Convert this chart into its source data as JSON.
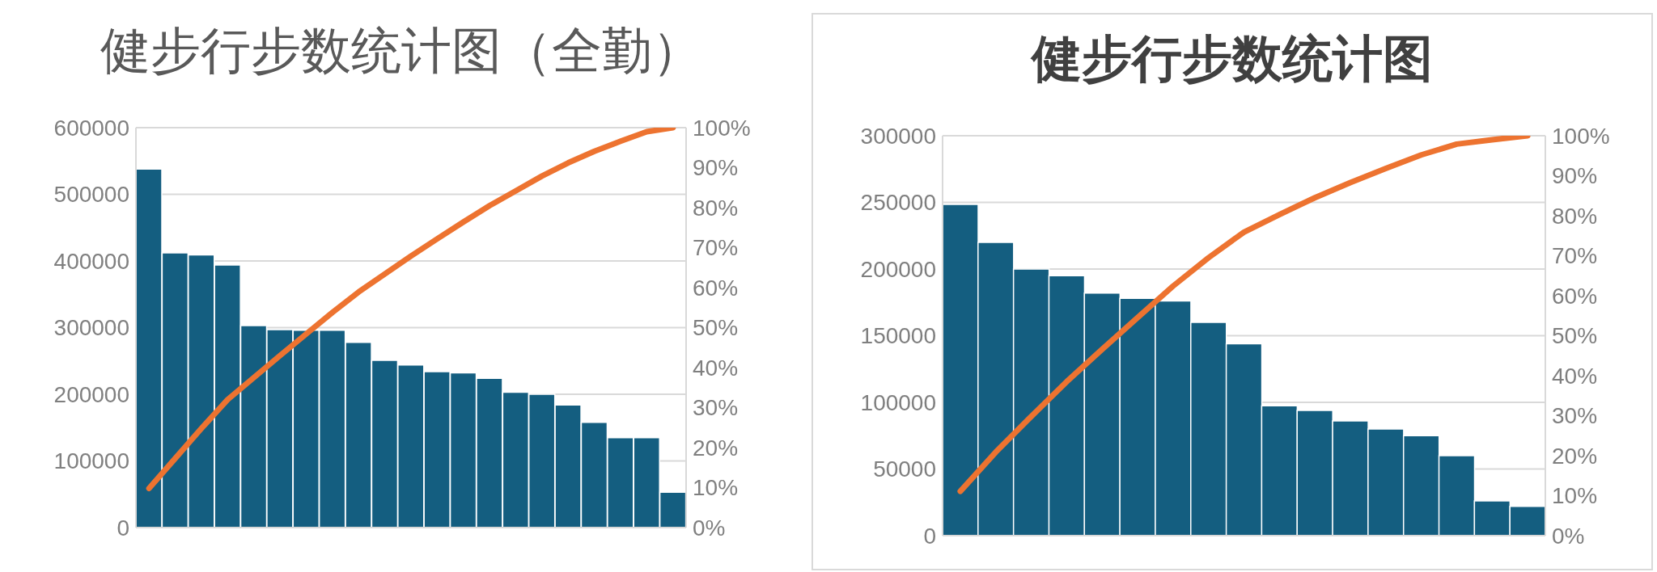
{
  "chart_data": [
    {
      "type": "bar",
      "title": "健步行步数统计图（全勤）",
      "categories": [
        null,
        null,
        null,
        null,
        null,
        null,
        null,
        null,
        null,
        null,
        null,
        null,
        null,
        null,
        null,
        null,
        null,
        null,
        null,
        null,
        null
      ],
      "series": [
        {
          "color": "#145e80",
          "values": [
            538000,
            412000,
            409000,
            394000,
            303000,
            297000,
            296000,
            296000,
            278000,
            251000,
            244000,
            234000,
            232000,
            224000,
            203000,
            200000,
            184000,
            158000,
            135000,
            135000,
            53000
          ]
        },
        {
          "type": "line",
          "axis": "y2",
          "color": "#ed7330",
          "values": [
            9.8,
            17.3,
            24.8,
            32.0,
            37.5,
            43.0,
            48.4,
            53.8,
            58.9,
            63.4,
            67.9,
            72.2,
            76.4,
            80.5,
            84.2,
            87.9,
            91.2,
            94.1,
            96.6,
            99.0,
            100
          ]
        }
      ],
      "ylim": [
        0,
        600000
      ],
      "yticks": [
        0,
        100000,
        200000,
        300000,
        400000,
        500000,
        600000
      ],
      "y2lim": [
        0,
        100
      ],
      "y2ticks": [
        {
          "value": 0,
          "label": "0%"
        },
        {
          "value": 10,
          "label": "10%"
        },
        {
          "value": 20,
          "label": "20%"
        },
        {
          "value": 30,
          "label": "30%"
        },
        {
          "value": 40,
          "label": "40%"
        },
        {
          "value": 50,
          "label": "50%"
        },
        {
          "value": 60,
          "label": "60%"
        },
        {
          "value": 70,
          "label": "70%"
        },
        {
          "value": 80,
          "label": "80%"
        },
        {
          "value": 90,
          "label": "90%"
        },
        {
          "value": 100,
          "label": "100%"
        }
      ],
      "grid": "y"
    },
    {
      "type": "bar",
      "title": "健步行步数统计图",
      "categories": [
        null,
        null,
        null,
        null,
        null,
        null,
        null,
        null,
        null,
        null,
        null,
        null,
        null,
        null,
        null,
        null,
        null
      ],
      "series": [
        {
          "color": "#145e80",
          "values": [
            248500,
            220000,
            200000,
            195000,
            182000,
            178000,
            176000,
            160000,
            144000,
            97500,
            94000,
            86000,
            80000,
            75000,
            60000,
            26000,
            22000
          ]
        },
        {
          "type": "line",
          "axis": "y2",
          "color": "#ed7330",
          "values": [
            11.1,
            20.9,
            29.8,
            38.5,
            46.6,
            54.5,
            62.4,
            69.5,
            75.9,
            80.3,
            84.5,
            88.3,
            91.8,
            95.2,
            97.9,
            99.0,
            100
          ]
        }
      ],
      "ylim": [
        0,
        300000
      ],
      "yticks": [
        0,
        50000,
        100000,
        150000,
        200000,
        250000,
        300000
      ],
      "y2lim": [
        0,
        100
      ],
      "y2ticks": [
        {
          "value": 0,
          "label": "0%"
        },
        {
          "value": 10,
          "label": "10%"
        },
        {
          "value": 20,
          "label": "20%"
        },
        {
          "value": 30,
          "label": "30%"
        },
        {
          "value": 40,
          "label": "40%"
        },
        {
          "value": 50,
          "label": "50%"
        },
        {
          "value": 60,
          "label": "60%"
        },
        {
          "value": 70,
          "label": "70%"
        },
        {
          "value": 80,
          "label": "80%"
        },
        {
          "value": 90,
          "label": "90%"
        },
        {
          "value": 100,
          "label": "100%"
        }
      ],
      "grid": "y"
    }
  ]
}
